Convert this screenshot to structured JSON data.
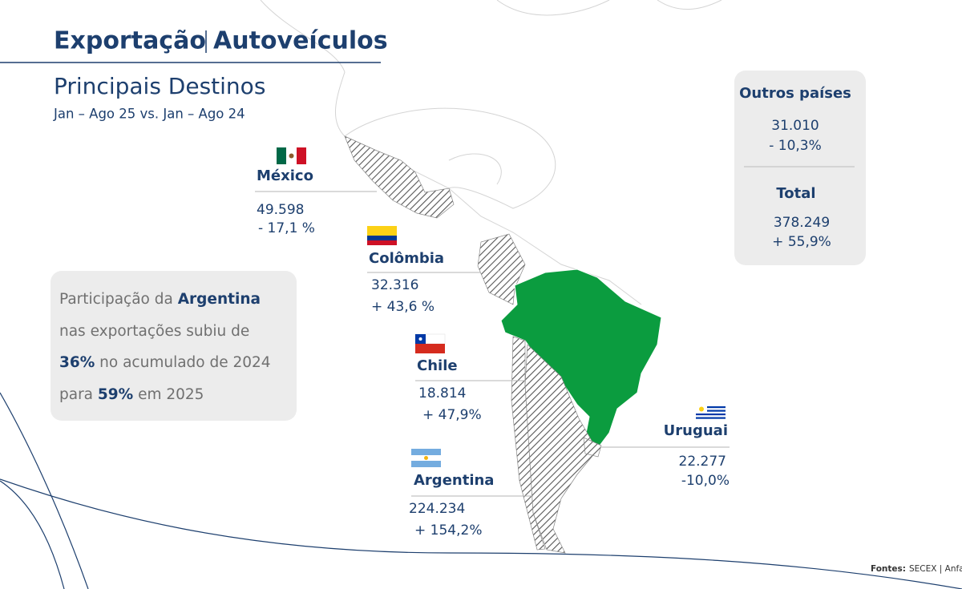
{
  "header": {
    "title": "Exportação",
    "title_suffix": "Autoveículos",
    "subtitle": "Principais Destinos",
    "period": "Jan – Ago 25 vs. Jan – Ago 24"
  },
  "destinations": [
    {
      "name": "México",
      "value": "49.598",
      "change": "- 17,1 %"
    },
    {
      "name": "Colômbia",
      "value": "32.316",
      "change": "+ 43,6 %"
    },
    {
      "name": "Chile",
      "value": "18.814",
      "change": "+ 47,9%"
    },
    {
      "name": "Argentina",
      "value": "224.234",
      "change": "+ 154,2%"
    },
    {
      "name": "Uruguai",
      "value": "22.277",
      "change": "-10,0%"
    }
  ],
  "summary": {
    "others": {
      "label": "Outros países",
      "value": "31.010",
      "change": "- 10,3%"
    },
    "total": {
      "label": "Total",
      "value": "378.249",
      "change": "+ 55,9%"
    }
  },
  "callout": {
    "parts": [
      "Participação da ",
      "Argentina",
      " nas exportações subiu de ",
      "36%",
      " no acumulado de 2024 para ",
      "59%",
      " em 2025"
    ]
  },
  "source": {
    "label": "Fontes:",
    "text": "SECEX | Anfavea"
  }
}
